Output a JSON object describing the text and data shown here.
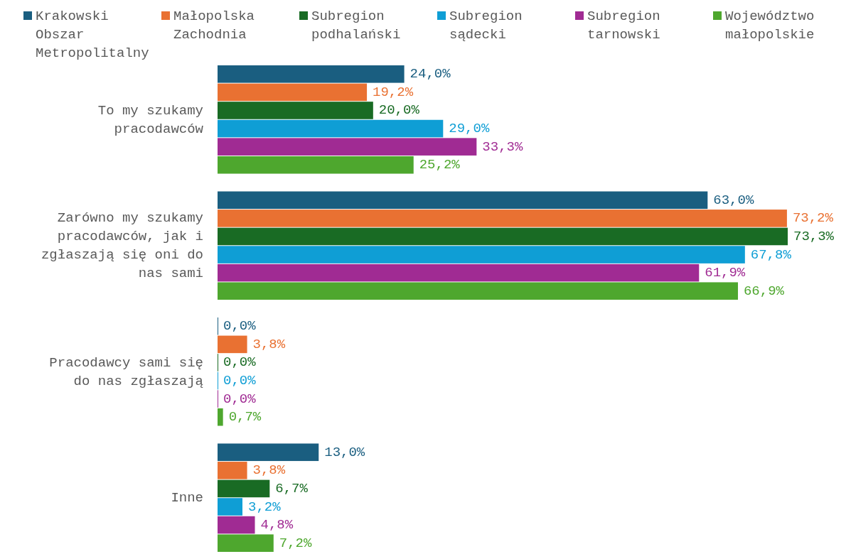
{
  "chart_data": {
    "type": "bar",
    "orientation": "horizontal",
    "legend": "top",
    "categories": [
      "To my szukamy pracodawców",
      "Zarówno my szukamy pracodawców, jak i zgłaszają się oni do nas sami",
      "Pracodawcy sami się do nas zgłaszają",
      "Inne"
    ],
    "series": [
      {
        "name": "Krakowski Obszar Metropolitalny",
        "color": "#1a5e80",
        "values": [
          24.0,
          63.0,
          0.0,
          13.0
        ],
        "value_labels": [
          "24,0%",
          "63,0%",
          "0,0%",
          "13,0%"
        ]
      },
      {
        "name": "Małopolska Zachodnia",
        "color": "#e97132",
        "values": [
          19.2,
          73.2,
          3.8,
          3.8
        ],
        "value_labels": [
          "19,2%",
          "73,2%",
          "3,8%",
          "3,8%"
        ]
      },
      {
        "name": "Subregion podhalański",
        "color": "#196b24",
        "values": [
          20.0,
          73.3,
          0.0,
          6.7
        ],
        "value_labels": [
          "20,0%",
          "73,3%",
          "0,0%",
          "6,7%"
        ]
      },
      {
        "name": "Subregion sądecki",
        "color": "#0f9ed5",
        "values": [
          29.0,
          67.8,
          0.0,
          3.2
        ],
        "value_labels": [
          "29,0%",
          "67,8%",
          "0,0%",
          "3,2%"
        ]
      },
      {
        "name": "Subregion tarnowski",
        "color": "#a02b93",
        "values": [
          33.3,
          61.9,
          0.0,
          4.8
        ],
        "value_labels": [
          "33,3%",
          "61,9%",
          "0,0%",
          "4,8%"
        ]
      },
      {
        "name": "Województwo małopolskie",
        "color": "#4ea72e",
        "values": [
          25.2,
          66.9,
          0.7,
          7.2
        ],
        "value_labels": [
          "25,2%",
          "66,9%",
          "0,7%",
          "7,2%"
        ]
      }
    ]
  }
}
